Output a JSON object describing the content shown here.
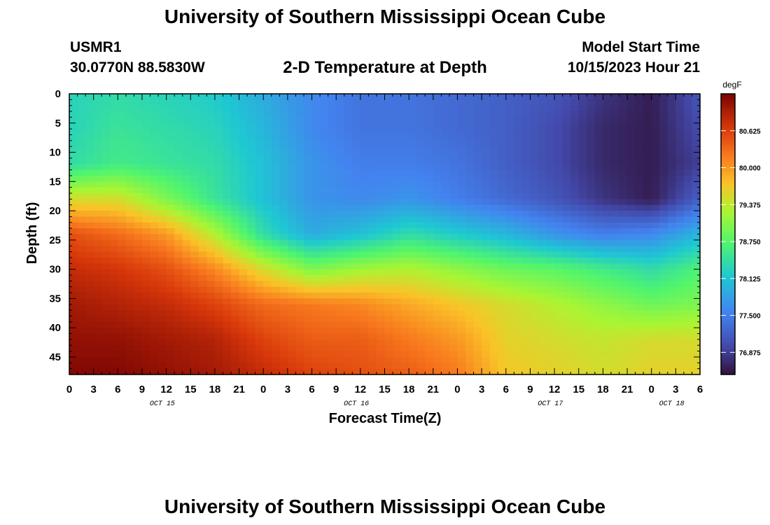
{
  "header": {
    "title": "University of Southern Mississippi Ocean Cube",
    "station_id": "USMR1",
    "station_coords": "30.0770N  88.5830W",
    "subtitle": "2-D Temperature at Depth",
    "start_label": "Model Start Time",
    "start_value": "10/15/2023 Hour 21"
  },
  "footer": {
    "title": "University of Southern Mississippi Ocean Cube"
  },
  "chart_data": {
    "type": "heatmap",
    "title": "2-D Temperature at Depth",
    "xlabel": "Forecast Time(Z)",
    "ylabel": "Depth (ft)",
    "x_unit": "hours from Oct 15 00Z",
    "xlim": [
      0,
      78
    ],
    "ylim": [
      48,
      0
    ],
    "x_ticks": [
      0,
      3,
      6,
      9,
      12,
      15,
      18,
      21,
      24,
      27,
      30,
      33,
      36,
      39,
      42,
      45,
      48,
      51,
      54,
      57,
      60,
      63,
      66,
      69,
      72,
      75,
      78
    ],
    "x_tick_labels": [
      "0",
      "3",
      "6",
      "9",
      "12",
      "15",
      "18",
      "21",
      "0",
      "3",
      "6",
      "9",
      "12",
      "15",
      "18",
      "21",
      "0",
      "3",
      "6",
      "9",
      "12",
      "15",
      "18",
      "21",
      "0",
      "3",
      "6"
    ],
    "date_labels": [
      {
        "x": 11.5,
        "text": "OCT 15"
      },
      {
        "x": 35.5,
        "text": "OCT 16"
      },
      {
        "x": 59.5,
        "text": "OCT 17"
      },
      {
        "x": 74.5,
        "text": "OCT 18"
      }
    ],
    "y_ticks": [
      0,
      5,
      10,
      15,
      20,
      25,
      30,
      35,
      40,
      45
    ],
    "y_tick_labels": [
      "0",
      "5",
      "10",
      "15",
      "20",
      "25",
      "30",
      "35",
      "40",
      "45"
    ],
    "colorbar": {
      "unit": "degF",
      "range": [
        76.5,
        81.25
      ],
      "ticks": [
        80.625,
        80.0,
        79.375,
        78.75,
        78.125,
        77.5,
        76.875
      ],
      "tick_labels": [
        "80.625",
        "80.000",
        "79.375",
        "78.750",
        "78.125",
        "77.500",
        "76.875"
      ]
    },
    "depth_levels": [
      0,
      6,
      12,
      18,
      24,
      30,
      36,
      42,
      48
    ],
    "times": [
      0,
      6,
      12,
      18,
      24,
      30,
      36,
      42,
      48,
      54,
      60,
      66,
      72,
      78
    ],
    "values": [
      [
        78.3,
        78.4,
        78.3,
        78.2,
        77.9,
        77.6,
        77.4,
        77.4,
        77.3,
        77.2,
        77.1,
        76.8,
        76.6,
        77.1
      ],
      [
        78.3,
        78.5,
        78.4,
        78.3,
        78.0,
        77.6,
        77.4,
        77.4,
        77.3,
        77.2,
        77.0,
        76.7,
        76.6,
        77.0
      ],
      [
        78.4,
        78.6,
        78.5,
        78.4,
        78.1,
        77.7,
        77.5,
        77.5,
        77.4,
        77.2,
        77.0,
        76.7,
        76.6,
        76.9
      ],
      [
        79.5,
        79.5,
        79.0,
        78.5,
        78.1,
        77.7,
        77.6,
        77.7,
        77.5,
        77.3,
        77.1,
        76.8,
        76.6,
        77.2
      ],
      [
        80.5,
        80.3,
        80.0,
        79.3,
        78.4,
        77.9,
        78.1,
        78.4,
        78.2,
        78.0,
        77.7,
        77.5,
        77.6,
        78.0
      ],
      [
        80.8,
        80.7,
        80.5,
        80.1,
        79.5,
        79.0,
        79.2,
        79.3,
        79.1,
        78.9,
        78.8,
        78.6,
        78.4,
        78.7
      ],
      [
        81.0,
        80.9,
        80.8,
        80.6,
        80.3,
        80.2,
        80.1,
        79.9,
        79.7,
        79.5,
        79.3,
        79.1,
        78.9,
        79.0
      ],
      [
        81.1,
        81.1,
        81.0,
        80.9,
        80.6,
        80.4,
        80.4,
        80.2,
        80.0,
        79.6,
        79.5,
        79.4,
        79.5,
        79.5
      ],
      [
        81.2,
        81.2,
        81.1,
        81.0,
        80.8,
        80.6,
        80.5,
        80.4,
        80.2,
        79.7,
        79.6,
        79.5,
        79.6,
        79.6
      ]
    ]
  }
}
